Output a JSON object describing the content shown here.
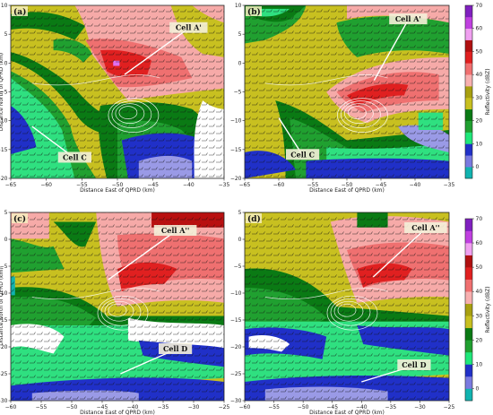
{
  "colorbar": {
    "label": "Reflectivity (dBZ)",
    "ticks": [
      0,
      10,
      20,
      30,
      40,
      50,
      60,
      70
    ],
    "colors": [
      "#10b3b0",
      "#7a7ae0",
      "#2030c8",
      "#1fe87a",
      "#20a030",
      "#0a7a14",
      "#c8c020",
      "#a8a010",
      "#f8b0b0",
      "#f07070",
      "#e02020",
      "#b01010",
      "#f0a0f0",
      "#c040e0",
      "#8020c0"
    ]
  },
  "chart_data": [
    {
      "type": "heatmap",
      "panel_label": "(a)",
      "xlabel": "Distance East of QPRD (km)",
      "ylabel": "Distance North of QPRD (km)",
      "xlim": [
        -65,
        -35
      ],
      "ylim": [
        -20,
        10
      ],
      "xticks": [
        -65,
        -60,
        -55,
        -50,
        -45,
        -40,
        -35
      ],
      "yticks": [
        -20,
        -15,
        -10,
        -5,
        0,
        5,
        10
      ],
      "annotations": [
        {
          "text": "Cell A'",
          "x": -40,
          "y": 6,
          "arrow_to": [
            -49,
            -2
          ]
        },
        {
          "text": "Cell C",
          "x": -56,
          "y": -16.5,
          "arrow_to": [
            -62,
            -11
          ]
        }
      ]
    },
    {
      "type": "heatmap",
      "panel_label": "(b)",
      "xlabel": "Distance East of QPRD (km)",
      "ylabel": "",
      "xlim": [
        -65,
        -35
      ],
      "ylim": [
        -20,
        10
      ],
      "xticks": [
        -65,
        -60,
        -55,
        -50,
        -45,
        -40,
        -35
      ],
      "yticks": [
        -20,
        -15,
        -10,
        -5,
        0,
        5,
        10
      ],
      "annotations": [
        {
          "text": "Cell A'",
          "x": -41,
          "y": 7.5,
          "arrow_to": [
            -46,
            -3
          ]
        },
        {
          "text": "Cell C",
          "x": -56.5,
          "y": -16,
          "arrow_to": [
            -60,
            -9.5
          ]
        }
      ]
    },
    {
      "type": "heatmap",
      "panel_label": "(c)",
      "xlabel": "Distance East of QPRD (km)",
      "ylabel": "Distance North of QPRD (km)",
      "xlim": [
        -60,
        -25
      ],
      "ylim": [
        -30,
        5
      ],
      "xticks": [
        -60,
        -55,
        -50,
        -45,
        -40,
        -35,
        -30,
        -25
      ],
      "yticks": [
        -30,
        -25,
        -20,
        -15,
        -10,
        -5,
        0,
        5
      ],
      "annotations": [
        {
          "text": "Cell A''",
          "x": -33,
          "y": 1.5,
          "arrow_to": [
            -44,
            -7.5
          ]
        },
        {
          "text": "Cell D",
          "x": -33,
          "y": -20.5,
          "arrow_to": [
            -42,
            -25
          ]
        }
      ]
    },
    {
      "type": "heatmap",
      "panel_label": "(d)",
      "xlabel": "Distance East of QPRD (km)",
      "ylabel": "",
      "xlim": [
        -60,
        -25
      ],
      "ylim": [
        -30,
        5
      ],
      "xticks": [
        -60,
        -55,
        -50,
        -45,
        -40,
        -35,
        -30,
        -25
      ],
      "yticks": [
        -30,
        -25,
        -20,
        -15,
        -10,
        -5,
        0,
        5
      ],
      "annotations": [
        {
          "text": "Cell A''",
          "x": -29,
          "y": 2,
          "arrow_to": [
            -38,
            -7
          ]
        },
        {
          "text": "Cell D",
          "x": -31,
          "y": -23.5,
          "arrow_to": [
            -40,
            -26.5
          ]
        }
      ]
    }
  ]
}
